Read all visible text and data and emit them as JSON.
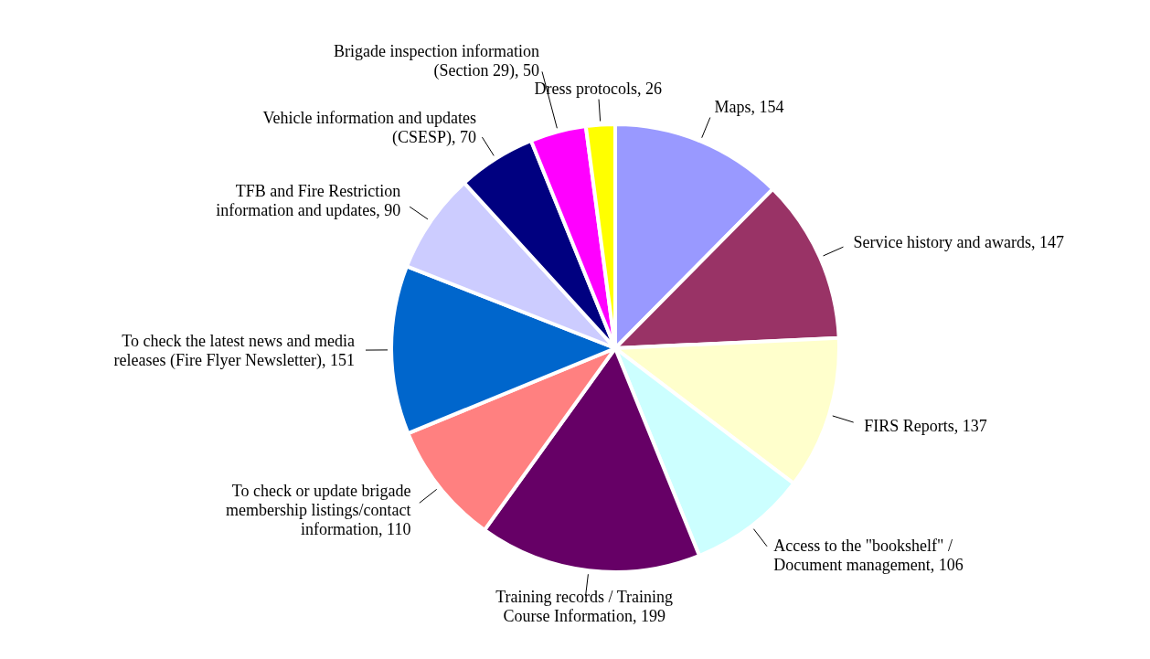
{
  "chart_data": {
    "type": "pie",
    "categories": [
      "Maps",
      "Service history and awards",
      "FIRS Reports",
      "Access to the \"bookshelf\" / Document management",
      "Training records / Training Course Information",
      "To check or update brigade membership listings/contact information",
      "To check the latest news and media releases (Fire Flyer Newsletter)",
      "TFB and Fire Restriction information and updates",
      "Vehicle information and updates (CSESP)",
      "Brigade inspection information (Section 29)",
      "Dress protocols"
    ],
    "values": [
      154,
      147,
      137,
      106,
      199,
      110,
      151,
      90,
      70,
      50,
      26
    ],
    "colors": [
      "#9999ff",
      "#993366",
      "#ffffcc",
      "#ccffff",
      "#660066",
      "#ff8080",
      "#0066cc",
      "#ccccff",
      "#000080",
      "#ff00ff",
      "#ffff00"
    ],
    "value_labels": [
      ", 154",
      ", 147",
      ", 137",
      ", 106",
      ", 199",
      ", 110",
      ", 151",
      ", 90",
      ", 70",
      ", 50",
      ", 26"
    ]
  }
}
